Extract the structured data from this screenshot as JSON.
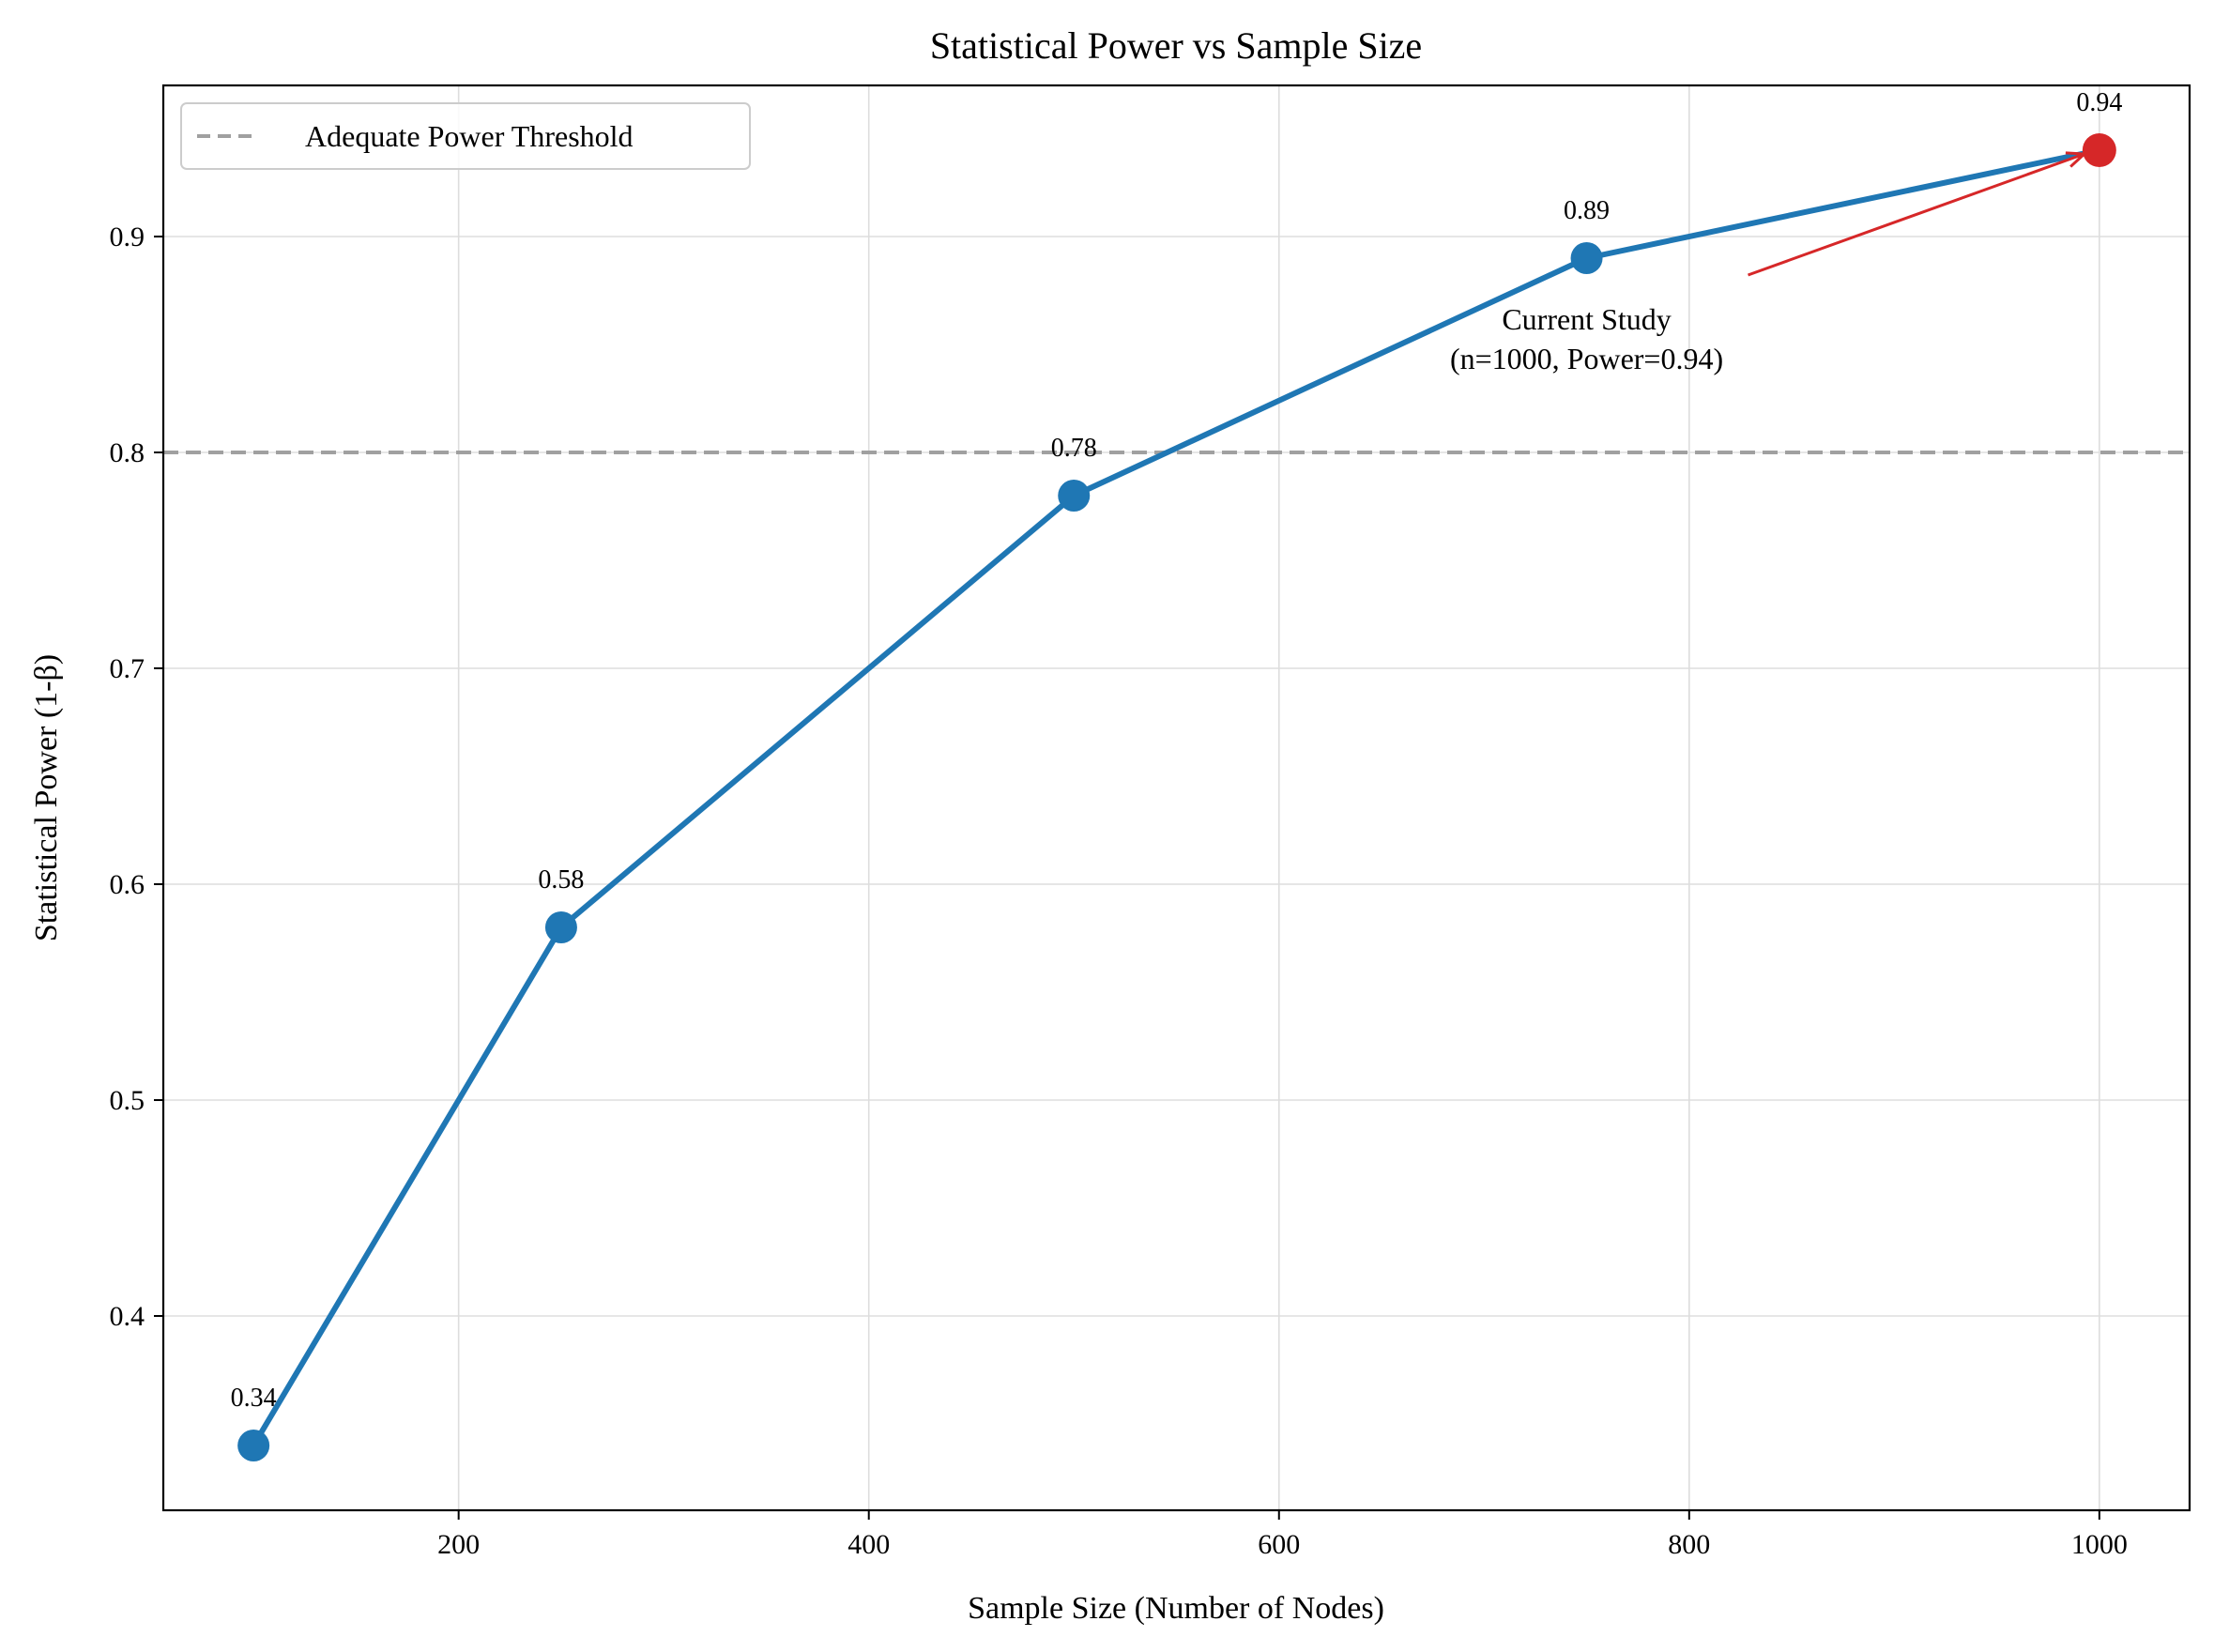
{
  "chart_data": {
    "type": "line",
    "title": "Statistical Power vs Sample Size",
    "xlabel": "Sample Size (Number of Nodes)",
    "ylabel": "Statistical Power (1-β)",
    "xlim": [
      56,
      1044
    ],
    "ylim": [
      0.31,
      0.97
    ],
    "x_ticks": [
      200,
      400,
      600,
      800,
      1000
    ],
    "y_ticks": [
      0.4,
      0.5,
      0.6,
      0.7,
      0.8,
      0.9
    ],
    "x_tick_labels": [
      "200",
      "400",
      "600",
      "800",
      "1000"
    ],
    "y_tick_labels": [
      "0.4",
      "0.5",
      "0.6",
      "0.7",
      "0.8",
      "0.9"
    ],
    "grid": true,
    "legend": {
      "position": "top-left",
      "entries": [
        "Adequate Power Threshold"
      ]
    },
    "series": [
      {
        "x": [
          100,
          250,
          500,
          750,
          1000
        ],
        "y": [
          0.34,
          0.58,
          0.78,
          0.89,
          0.94
        ],
        "labels": [
          "0.34",
          "0.58",
          "0.78",
          "0.89",
          "0.94"
        ],
        "color": "#1f77b4",
        "marker": "circle"
      }
    ],
    "threshold": {
      "name": "Adequate Power Threshold",
      "y": 0.8,
      "color": "#a0a0a0",
      "style": "dashed"
    },
    "highlight": {
      "x": 1000,
      "y": 0.94,
      "color": "#d62728"
    },
    "annotation": {
      "lines": [
        "Current Study",
        "(n=1000, Power=0.94)"
      ],
      "text_x": 750,
      "text_y": 0.87,
      "color": "#d62728"
    }
  }
}
